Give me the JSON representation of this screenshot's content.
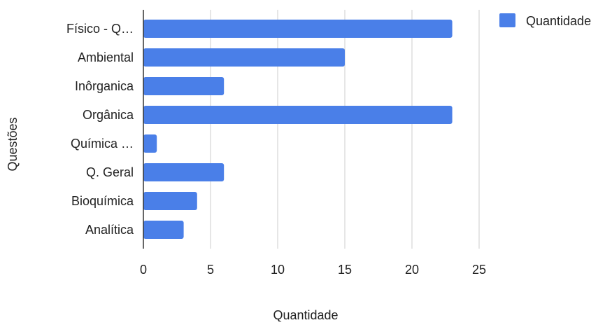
{
  "chart_data": {
    "type": "bar",
    "orientation": "horizontal",
    "title": "",
    "xlabel": "Quantidade",
    "ylabel": "Questões",
    "categories": [
      "Físico - Q…",
      "Ambiental",
      "Inôrganica",
      "Orgânica",
      "Química …",
      "Q. Geral",
      "Bioquímica",
      "Analítica"
    ],
    "series": [
      {
        "name": "Quantidade",
        "values": [
          23,
          15,
          6,
          23,
          1,
          6,
          4,
          3
        ],
        "color": "#4a7fe8"
      }
    ],
    "xlim": [
      0,
      25
    ],
    "xticks": [
      "0",
      "5",
      "10",
      "15",
      "20",
      "25"
    ],
    "grid": true,
    "legend_position": "top-right"
  }
}
